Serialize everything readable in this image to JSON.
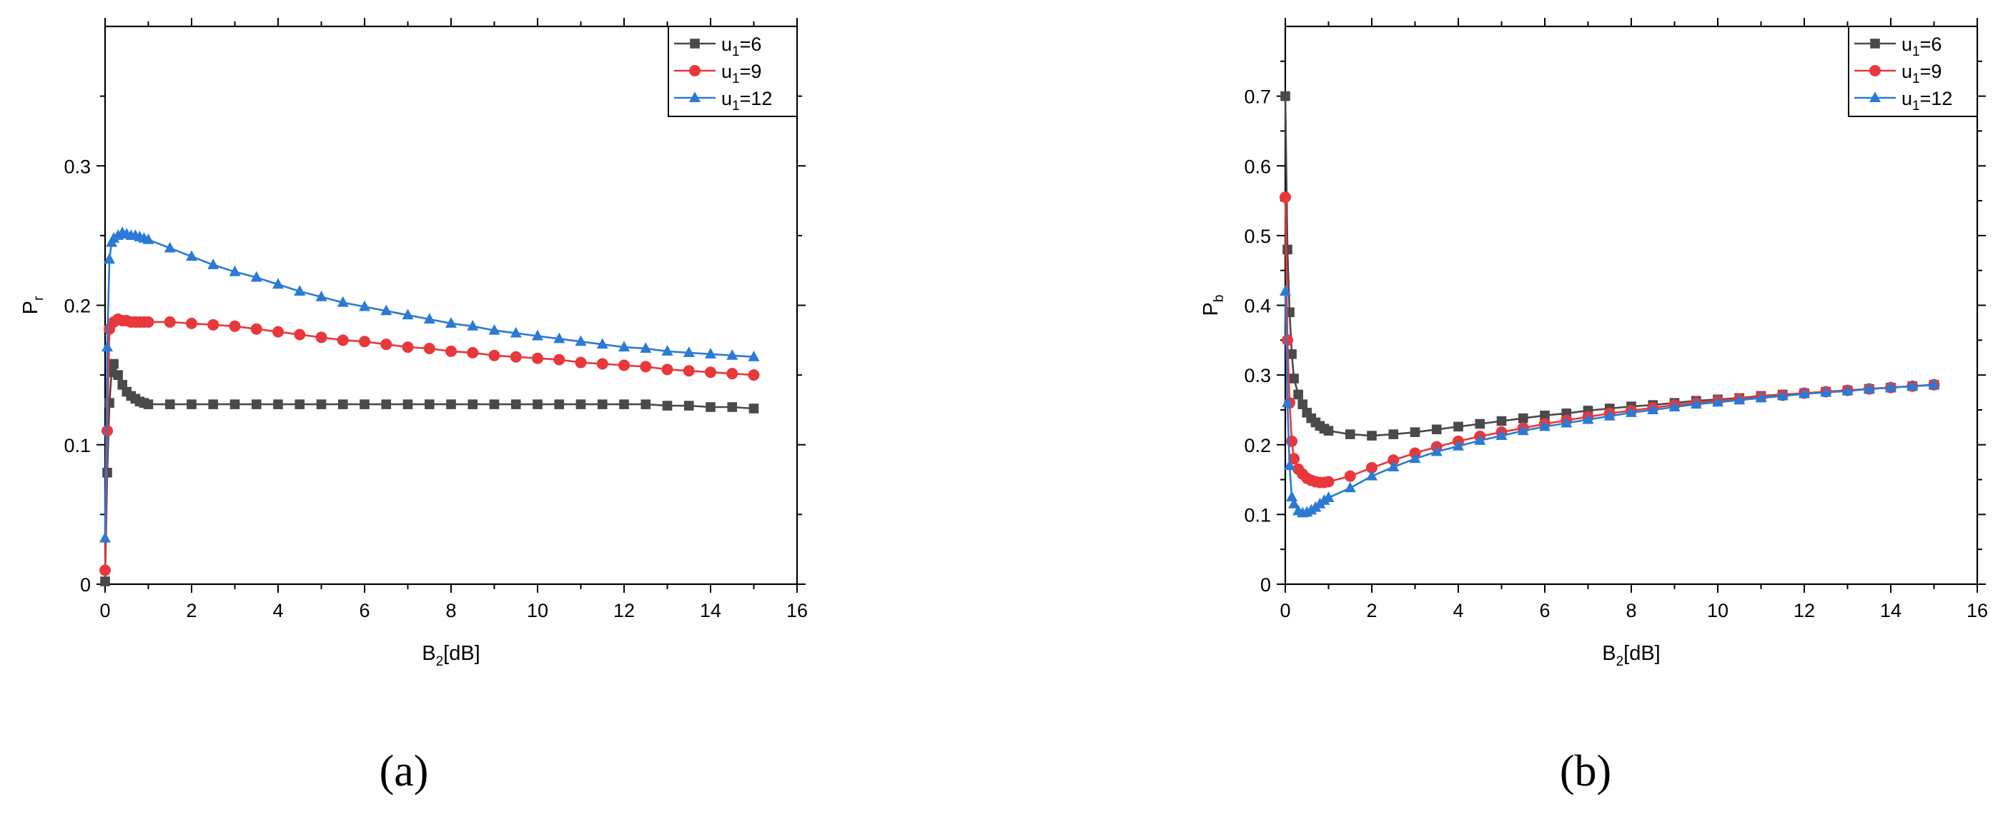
{
  "chart_data": [
    {
      "type": "line",
      "panel_label": "(a)",
      "title": "",
      "xlabel": {
        "main": "B",
        "sub": "2",
        "suffix": "[dB]"
      },
      "ylabel": {
        "main": "P",
        "sub": "r"
      },
      "xlim": [
        0,
        16
      ],
      "ylim": [
        0,
        0.4
      ],
      "xticks": [
        0,
        2,
        4,
        6,
        8,
        10,
        12,
        14,
        16
      ],
      "yticks": [
        0,
        0.1,
        0.2,
        0.3
      ],
      "legend_position": "top-right",
      "series": [
        {
          "name": "u1=6",
          "label_main": "u",
          "label_sub": "1",
          "label_suffix": "=6",
          "color": "#4a4a4a",
          "marker": "square",
          "x": [
            0,
            0.05,
            0.1,
            0.15,
            0.2,
            0.3,
            0.4,
            0.5,
            0.6,
            0.7,
            0.8,
            0.9,
            1,
            1.5,
            2,
            2.5,
            3,
            3.5,
            4,
            4.5,
            5,
            5.5,
            6,
            6.5,
            7,
            7.5,
            8,
            8.5,
            9,
            9.5,
            10,
            10.5,
            11,
            11.5,
            12,
            12.5,
            13,
            13.5,
            14,
            14.5,
            15
          ],
          "y": [
            0.002,
            0.08,
            0.13,
            0.152,
            0.158,
            0.15,
            0.143,
            0.138,
            0.135,
            0.133,
            0.131,
            0.13,
            0.129,
            0.129,
            0.129,
            0.129,
            0.129,
            0.129,
            0.129,
            0.129,
            0.129,
            0.129,
            0.129,
            0.129,
            0.129,
            0.129,
            0.129,
            0.129,
            0.129,
            0.129,
            0.129,
            0.129,
            0.129,
            0.129,
            0.129,
            0.129,
            0.128,
            0.128,
            0.127,
            0.127,
            0.126
          ]
        },
        {
          "name": "u1=9",
          "label_main": "u",
          "label_sub": "1",
          "label_suffix": "=9",
          "color": "#e8383b",
          "marker": "circle",
          "x": [
            0,
            0.05,
            0.1,
            0.2,
            0.3,
            0.4,
            0.5,
            0.6,
            0.7,
            0.8,
            0.9,
            1,
            1.5,
            2,
            2.5,
            3,
            3.5,
            4,
            4.5,
            5,
            5.5,
            6,
            6.5,
            7,
            7.5,
            8,
            8.5,
            9,
            9.5,
            10,
            10.5,
            11,
            11.5,
            12,
            12.5,
            13,
            13.5,
            14,
            14.5,
            15
          ],
          "y": [
            0.01,
            0.11,
            0.183,
            0.188,
            0.19,
            0.189,
            0.189,
            0.188,
            0.188,
            0.188,
            0.188,
            0.188,
            0.188,
            0.187,
            0.186,
            0.185,
            0.183,
            0.181,
            0.179,
            0.177,
            0.175,
            0.174,
            0.172,
            0.17,
            0.169,
            0.167,
            0.166,
            0.164,
            0.163,
            0.162,
            0.161,
            0.159,
            0.158,
            0.157,
            0.156,
            0.154,
            0.153,
            0.152,
            0.151,
            0.15
          ]
        },
        {
          "name": "u1=12",
          "label_main": "u",
          "label_sub": "1",
          "label_suffix": "=12",
          "color": "#2a7ad6",
          "marker": "triangle",
          "x": [
            0,
            0.05,
            0.1,
            0.15,
            0.2,
            0.3,
            0.4,
            0.5,
            0.6,
            0.7,
            0.8,
            0.9,
            1,
            1.5,
            2,
            2.5,
            3,
            3.5,
            4,
            4.5,
            5,
            5.5,
            6,
            6.5,
            7,
            7.5,
            8,
            8.5,
            9,
            9.5,
            10,
            10.5,
            11,
            11.5,
            12,
            12.5,
            13,
            13.5,
            14,
            14.5,
            15
          ],
          "y": [
            0.033,
            0.17,
            0.233,
            0.245,
            0.248,
            0.25,
            0.252,
            0.251,
            0.25,
            0.25,
            0.249,
            0.248,
            0.247,
            0.241,
            0.235,
            0.229,
            0.224,
            0.22,
            0.215,
            0.21,
            0.206,
            0.202,
            0.199,
            0.196,
            0.193,
            0.19,
            0.187,
            0.185,
            0.182,
            0.18,
            0.178,
            0.176,
            0.174,
            0.172,
            0.17,
            0.169,
            0.167,
            0.166,
            0.165,
            0.164,
            0.163
          ]
        }
      ]
    },
    {
      "type": "line",
      "panel_label": "(b)",
      "title": "",
      "xlabel": {
        "main": "B",
        "sub": "2",
        "suffix": "[dB]"
      },
      "ylabel": {
        "main": "P",
        "sub": "b"
      },
      "xlim": [
        0,
        16
      ],
      "ylim": [
        0,
        0.8
      ],
      "xticks": [
        0,
        2,
        4,
        6,
        8,
        10,
        12,
        14,
        16
      ],
      "yticks": [
        0,
        0.1,
        0.2,
        0.3,
        0.4,
        0.5,
        0.6,
        0.7
      ],
      "legend_position": "top-right",
      "series": [
        {
          "name": "u1=6",
          "label_main": "u",
          "label_sub": "1",
          "label_suffix": "=6",
          "color": "#4a4a4a",
          "marker": "square",
          "x": [
            0,
            0.05,
            0.1,
            0.15,
            0.2,
            0.3,
            0.4,
            0.5,
            0.6,
            0.7,
            0.8,
            0.9,
            1,
            1.5,
            2,
            2.5,
            3,
            3.5,
            4,
            4.5,
            5,
            5.5,
            6,
            6.5,
            7,
            7.5,
            8,
            8.5,
            9,
            9.5,
            10,
            10.5,
            11,
            11.5,
            12,
            12.5,
            13,
            13.5,
            14,
            14.5,
            15
          ],
          "y": [
            0.7,
            0.48,
            0.39,
            0.33,
            0.295,
            0.272,
            0.258,
            0.246,
            0.238,
            0.232,
            0.227,
            0.223,
            0.22,
            0.215,
            0.213,
            0.215,
            0.218,
            0.222,
            0.226,
            0.23,
            0.234,
            0.238,
            0.242,
            0.245,
            0.249,
            0.252,
            0.255,
            0.257,
            0.26,
            0.263,
            0.265,
            0.267,
            0.27,
            0.272,
            0.274,
            0.276,
            0.278,
            0.28,
            0.282,
            0.284,
            0.286
          ]
        },
        {
          "name": "u1=9",
          "label_main": "u",
          "label_sub": "1",
          "label_suffix": "=9",
          "color": "#e8383b",
          "marker": "circle",
          "x": [
            0,
            0.05,
            0.1,
            0.15,
            0.2,
            0.3,
            0.4,
            0.5,
            0.6,
            0.7,
            0.8,
            0.9,
            1,
            1.5,
            2,
            2.5,
            3,
            3.5,
            4,
            4.5,
            5,
            5.5,
            6,
            6.5,
            7,
            7.5,
            8,
            8.5,
            9,
            9.5,
            10,
            10.5,
            11,
            11.5,
            12,
            12.5,
            13,
            13.5,
            14,
            14.5,
            15
          ],
          "y": [
            0.555,
            0.35,
            0.26,
            0.205,
            0.18,
            0.165,
            0.158,
            0.152,
            0.149,
            0.147,
            0.146,
            0.146,
            0.147,
            0.155,
            0.167,
            0.178,
            0.188,
            0.197,
            0.205,
            0.212,
            0.218,
            0.224,
            0.23,
            0.235,
            0.24,
            0.245,
            0.249,
            0.253,
            0.257,
            0.26,
            0.263,
            0.266,
            0.269,
            0.271,
            0.274,
            0.276,
            0.278,
            0.28,
            0.282,
            0.284,
            0.286
          ]
        },
        {
          "name": "u1=12",
          "label_main": "u",
          "label_sub": "1",
          "label_suffix": "=12",
          "color": "#2a7ad6",
          "marker": "triangle",
          "x": [
            0,
            0.05,
            0.1,
            0.15,
            0.2,
            0.3,
            0.4,
            0.5,
            0.6,
            0.7,
            0.8,
            0.9,
            1,
            1.5,
            2,
            2.5,
            3,
            3.5,
            4,
            4.5,
            5,
            5.5,
            6,
            6.5,
            7,
            7.5,
            8,
            8.5,
            9,
            9.5,
            10,
            10.5,
            11,
            11.5,
            12,
            12.5,
            13,
            13.5,
            14,
            14.5,
            15
          ],
          "y": [
            0.42,
            0.26,
            0.17,
            0.125,
            0.115,
            0.105,
            0.102,
            0.103,
            0.106,
            0.11,
            0.115,
            0.12,
            0.124,
            0.138,
            0.155,
            0.168,
            0.18,
            0.19,
            0.198,
            0.206,
            0.213,
            0.22,
            0.226,
            0.231,
            0.236,
            0.241,
            0.246,
            0.25,
            0.254,
            0.258,
            0.261,
            0.264,
            0.267,
            0.27,
            0.273,
            0.275,
            0.277,
            0.28,
            0.282,
            0.284,
            0.286
          ]
        }
      ]
    }
  ]
}
